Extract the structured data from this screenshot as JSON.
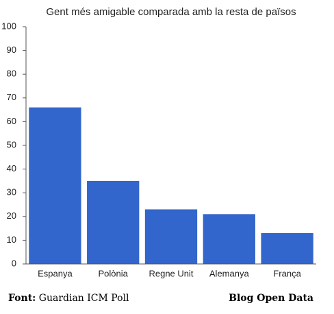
{
  "chart_data": {
    "type": "bar",
    "title": "Gent més amigable comparada amb la resta de països",
    "categories": [
      "Espanya",
      "Polònia",
      "Regne Unit",
      "Alemanya",
      "França"
    ],
    "values": [
      66,
      35,
      23,
      21,
      13
    ],
    "color": "#3366cc",
    "ylim": [
      0,
      100
    ],
    "yticks": [
      0,
      10,
      20,
      30,
      40,
      50,
      60,
      70,
      80,
      90,
      100
    ],
    "grid": false
  },
  "footer": {
    "source_label": "Font:",
    "source": "Guardian ICM Poll",
    "credit": "Blog Open Data"
  }
}
